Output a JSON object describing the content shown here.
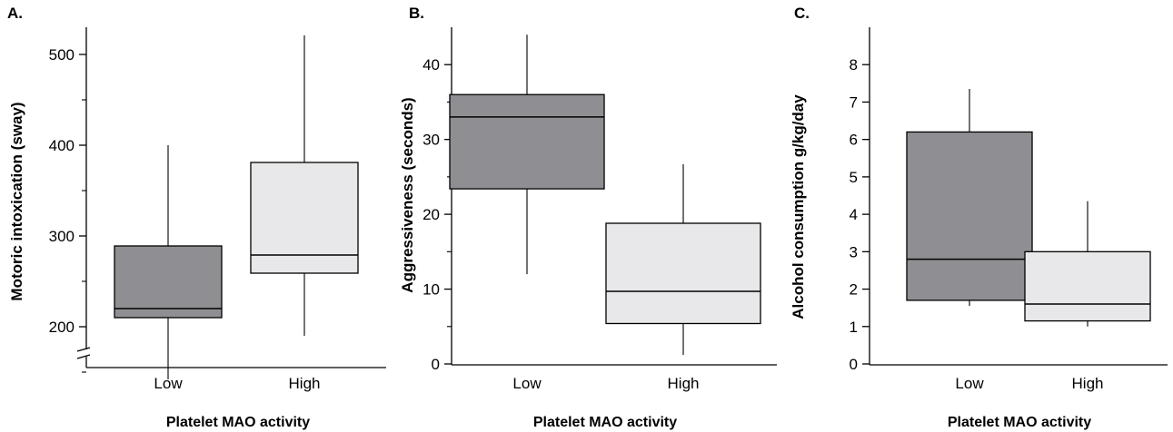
{
  "colors": {
    "low_box": "#8e8e93",
    "high_box": "#e8e8ea",
    "stroke": "#000000"
  },
  "chart_data": [
    {
      "type": "box",
      "panel_label": "A.",
      "ylabel": "Motoric intoxication (sway)",
      "xlabel": "Platelet  MAO activity",
      "categories": [
        "Low",
        "High"
      ],
      "ylim": [
        100,
        530
      ],
      "axis_break": true,
      "yticks_major": [
        200,
        300,
        400,
        500
      ],
      "yticks_minor": [
        150,
        250,
        350,
        450
      ],
      "boxes": [
        {
          "category": "Low",
          "min": 142,
          "q1": 210,
          "median": 220,
          "q3": 289,
          "max": 400,
          "color": "#8e8e93"
        },
        {
          "category": "High",
          "min": 190,
          "q1": 259,
          "median": 279,
          "q3": 381,
          "max": 521,
          "color": "#e8e8ea"
        }
      ],
      "grid": false
    },
    {
      "type": "box",
      "panel_label": "B.",
      "ylabel": "Aggressiveness (seconds)",
      "xlabel": "Platelet  MAO activity",
      "categories": [
        "Low",
        "High"
      ],
      "ylim": [
        0,
        45
      ],
      "yticks_major": [
        0,
        10,
        20,
        30,
        40
      ],
      "yticks_minor": [
        5,
        15,
        25,
        35
      ],
      "boxes": [
        {
          "category": "Low",
          "min": 12,
          "q1": 23.4,
          "median": 33,
          "q3": 36,
          "max": 44,
          "color": "#8e8e93"
        },
        {
          "category": "High",
          "min": 1.2,
          "q1": 5.4,
          "median": 9.7,
          "q3": 18.8,
          "max": 26.7,
          "color": "#e8e8ea"
        }
      ],
      "grid": false
    },
    {
      "type": "box",
      "panel_label": "C.",
      "ylabel": "Alcohol consumption g/kg/day",
      "xlabel": "Platelet  MAO activity",
      "categories": [
        "Low",
        "High"
      ],
      "ylim": [
        0,
        9
      ],
      "yticks_major": [
        0,
        1,
        2,
        3,
        4,
        5,
        6,
        7,
        8
      ],
      "yticks_minor": [],
      "boxes": [
        {
          "category": "Low",
          "min": 1.55,
          "q1": 1.7,
          "median": 2.8,
          "q3": 6.2,
          "max": 7.35,
          "color": "#8e8e93"
        },
        {
          "category": "High",
          "min": 1.0,
          "q1": 1.15,
          "median": 1.6,
          "q3": 3.0,
          "max": 4.35,
          "color": "#e8e8ea"
        }
      ],
      "grid": false
    }
  ]
}
